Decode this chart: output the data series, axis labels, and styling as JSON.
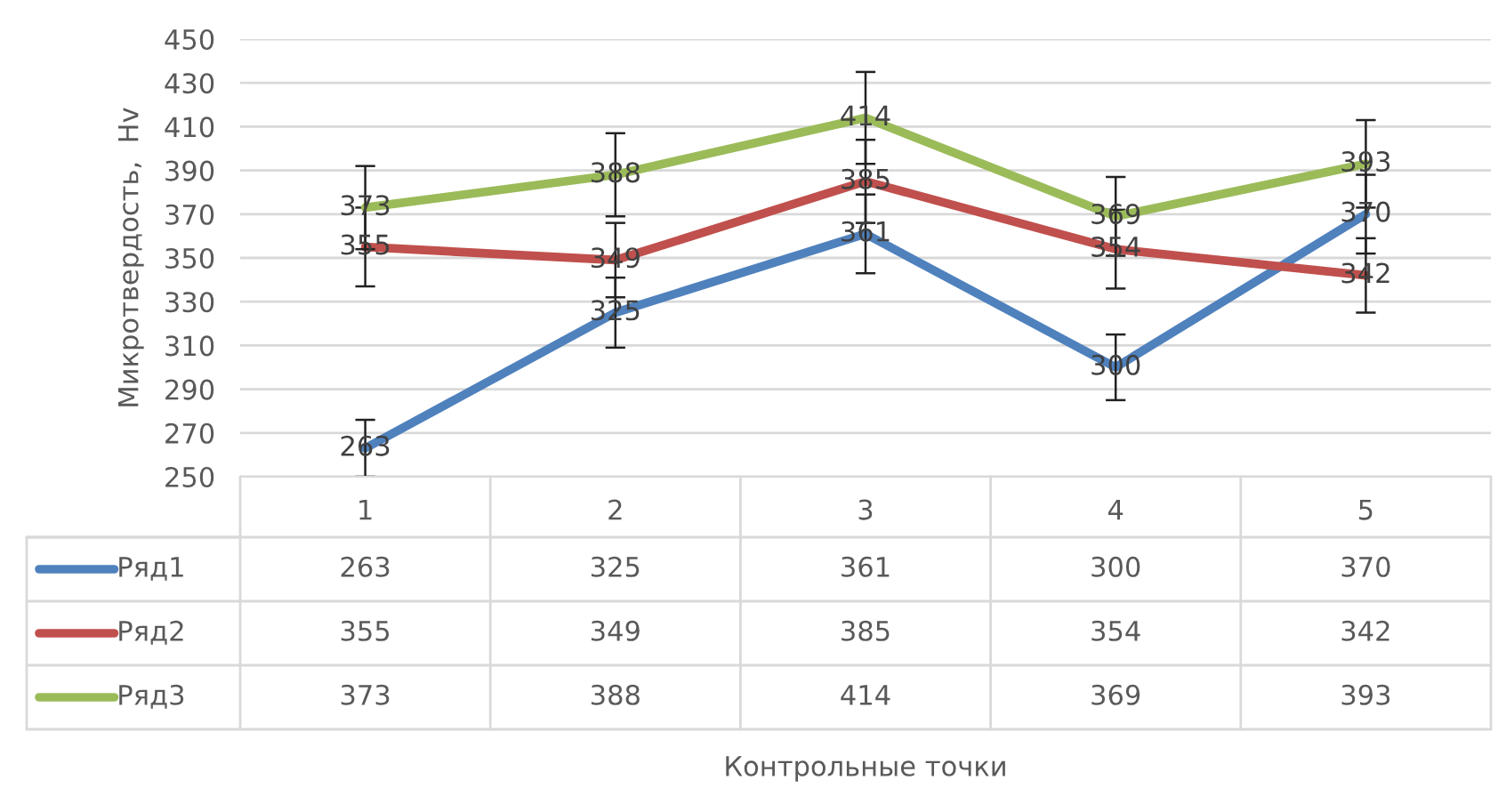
{
  "chart_data": {
    "type": "line",
    "ylabel": "Микротвердость,  Hv",
    "categories": [
      "1",
      "2",
      "3",
      "4",
      "5"
    ],
    "series": [
      {
        "name": "Ряд1",
        "color": "#4f81bd",
        "values": [
          263,
          325,
          361,
          300,
          370
        ],
        "errors": [
          13,
          16,
          18,
          15,
          18
        ]
      },
      {
        "name": "Ряд2",
        "color": "#c0504d",
        "values": [
          355,
          349,
          385,
          354,
          342
        ],
        "errors": [
          18,
          17,
          19,
          18,
          17
        ]
      },
      {
        "name": "Ряд3",
        "color": "#9bbb59",
        "values": [
          373,
          388,
          414,
          369,
          393
        ],
        "errors": [
          19,
          19,
          21,
          18,
          20
        ]
      }
    ],
    "annotations": [
      {
        "text": "263",
        "x": "1",
        "y": 263
      },
      {
        "text": "325",
        "x": "2",
        "y": 325
      },
      {
        "text": "361",
        "x": "3",
        "y": 361
      },
      {
        "text": "300",
        "x": "4",
        "y": 300
      },
      {
        "text": "370",
        "x": "5",
        "y": 370
      },
      {
        "text": "355",
        "x": "1",
        "y": 355
      },
      {
        "text": "349",
        "x": "2",
        "y": 349
      },
      {
        "text": "385",
        "x": "3",
        "y": 385
      },
      {
        "text": "354",
        "x": "4",
        "y": 354
      },
      {
        "text": "342",
        "x": "5",
        "y": 342
      },
      {
        "text": "373",
        "x": "1",
        "y": 373
      },
      {
        "text": "388",
        "x": "2",
        "y": 388
      },
      {
        "text": "414",
        "x": "3",
        "y": 414
      },
      {
        "text": "369",
        "x": "4",
        "y": 369
      },
      {
        "text": "393",
        "x": "5",
        "y": 393
      },
      "Контрольные точки"
    ],
    "ylim": [
      250,
      450
    ],
    "yticks": [
      250,
      270,
      290,
      310,
      330,
      350,
      370,
      390,
      410,
      430,
      450
    ],
    "grid": "y",
    "legend": "bottom",
    "data_labels": true,
    "marker": "none",
    "line_style": "solid"
  }
}
